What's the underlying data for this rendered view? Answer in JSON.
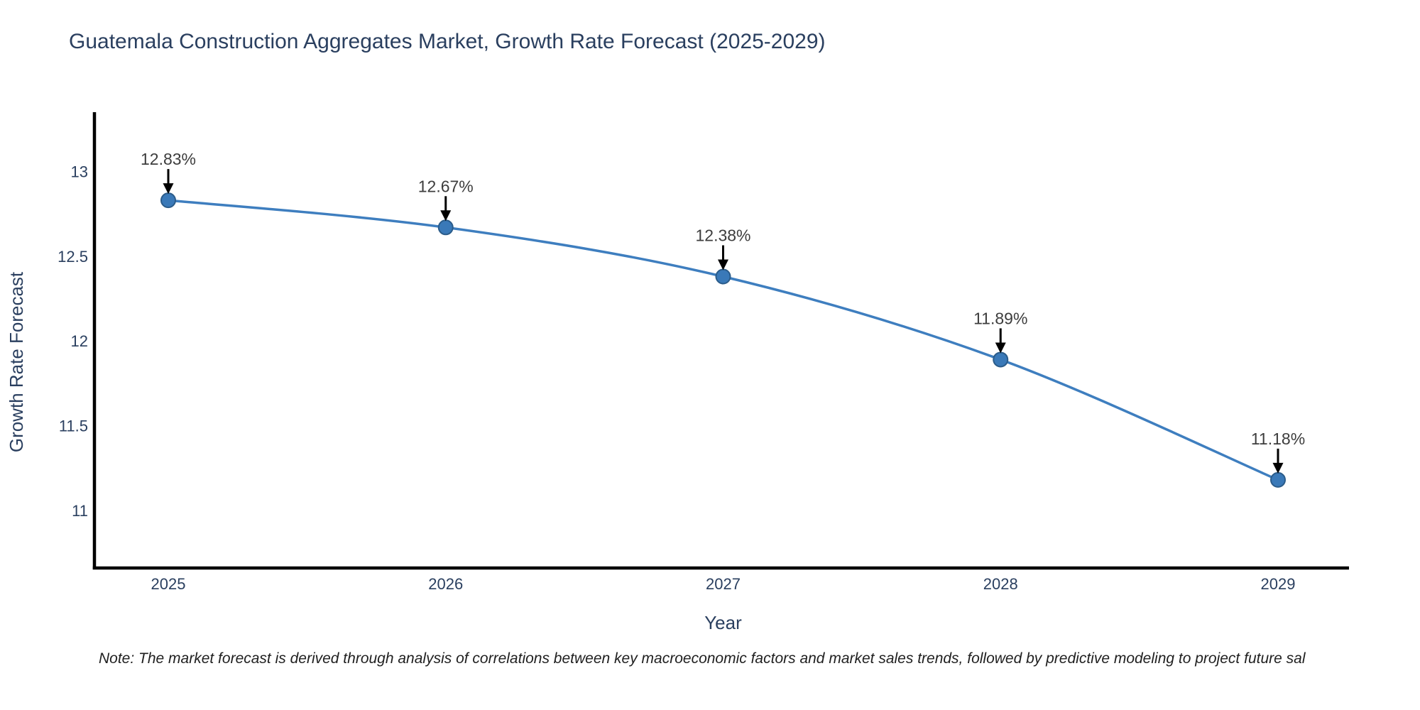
{
  "page": {
    "footnote": "Note: The market forecast is derived through analysis of correlations between key macroeconomic factors and market sales trends, followed by predictive modeling to project future sal"
  },
  "chart_data": {
    "type": "line",
    "title": "Guatemala Construction Aggregates Market, Growth Rate Forecast (2025-2029)",
    "xlabel": "Year",
    "ylabel": "Growth Rate Forecast",
    "x": [
      2025,
      2026,
      2027,
      2028,
      2029
    ],
    "values": [
      12.83,
      12.67,
      12.38,
      11.89,
      11.18
    ],
    "point_labels": [
      "12.83%",
      "12.67%",
      "12.38%",
      "11.89%",
      "11.18%"
    ],
    "yticks": [
      11,
      11.5,
      12,
      12.5,
      13
    ],
    "ylim": [
      10.66,
      13.35
    ],
    "grid": false,
    "legend_position": "none",
    "marker_shape": "circle",
    "annotation_arrow": "down",
    "colors": {
      "line": "#3e7ebf",
      "marker_fill": "#3a79b8",
      "marker_edge": "#2b5c8a",
      "annotation_text": "#3d3d3d",
      "axis_text": "#2a3f5f",
      "spine": "#000000",
      "background": "#ffffff"
    }
  }
}
